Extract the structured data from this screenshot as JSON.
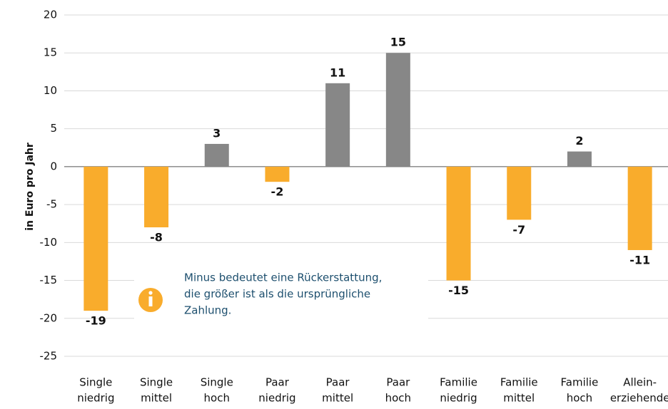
{
  "chart_data": {
    "type": "bar",
    "y_label": "in Euro pro Jahr",
    "categories": [
      [
        "Single",
        "niedrig"
      ],
      [
        "Single",
        "mittel"
      ],
      [
        "Single",
        "hoch"
      ],
      [
        "Paar",
        "niedrig"
      ],
      [
        "Paar",
        "mittel"
      ],
      [
        "Paar",
        "hoch"
      ],
      [
        "Familie",
        "niedrig"
      ],
      [
        "Familie",
        "mittel"
      ],
      [
        "Familie",
        "hoch"
      ],
      [
        "Allein-",
        "erziehende"
      ]
    ],
    "values": [
      -19,
      -8,
      3,
      -2,
      11,
      15,
      -15,
      -7,
      2,
      -11
    ],
    "colors": [
      "#f9ac2c",
      "#f9ac2c",
      "#878787",
      "#f9ac2c",
      "#878787",
      "#878787",
      "#f9ac2c",
      "#f9ac2c",
      "#878787",
      "#f9ac2c"
    ],
    "ylim": [
      -25,
      20
    ],
    "yticks": [
      -25,
      -20,
      -15,
      -10,
      -5,
      0,
      5,
      10,
      15,
      20
    ],
    "grid": true,
    "annotation": [
      "Minus bedeutet eine Rückerstattung,",
      "die  größer ist als die ursprüngliche",
      "Zahlung."
    ]
  }
}
